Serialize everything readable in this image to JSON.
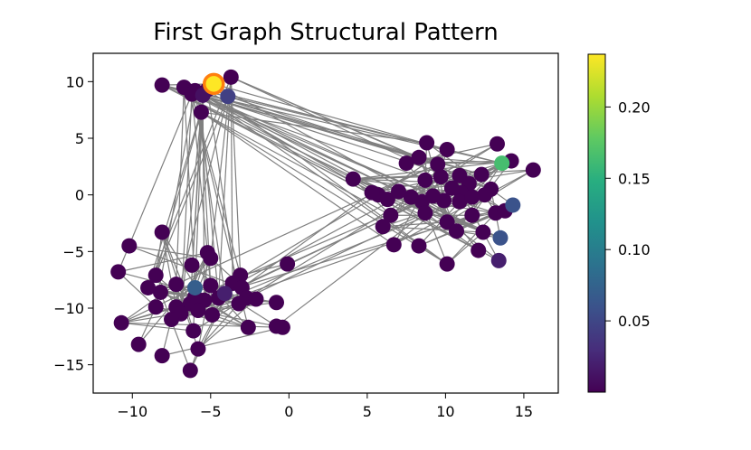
{
  "chart_data": {
    "type": "scatter",
    "title": "First Graph Structural Pattern",
    "xlabel": "",
    "ylabel": "",
    "xlim": [
      -12.5,
      17.2
    ],
    "ylim": [
      -17.5,
      12.5
    ],
    "xticks": [
      -10,
      -5,
      0,
      5,
      10,
      15
    ],
    "yticks": [
      10,
      5,
      0,
      -5,
      -10,
      -15
    ],
    "grid": false,
    "edge_color": "#808080",
    "colorbar": {
      "colormap": "viridis",
      "range": [
        0.0,
        0.237
      ],
      "ticks": [
        0.05,
        0.1,
        0.15,
        0.2
      ],
      "tick_labels": [
        "0.05",
        "0.10",
        "0.15",
        "0.20"
      ]
    },
    "highlight": {
      "x": -4.8,
      "y": 9.8,
      "value": 0.237,
      "ring_color": "#ff7f0e"
    },
    "nodes": [
      {
        "x": -4.8,
        "y": 9.8,
        "v": 0.237
      },
      {
        "x": -8.1,
        "y": 9.7,
        "v": 0.0
      },
      {
        "x": -6.7,
        "y": 9.5,
        "v": 0.0
      },
      {
        "x": -6.0,
        "y": 9.2,
        "v": 0.0
      },
      {
        "x": -3.7,
        "y": 10.4,
        "v": 0.0
      },
      {
        "x": -3.9,
        "y": 8.7,
        "v": 0.045
      },
      {
        "x": -5.5,
        "y": 8.8,
        "v": 0.01
      },
      {
        "x": -5.2,
        "y": 9.3,
        "v": 0.0
      },
      {
        "x": -6.2,
        "y": 8.9,
        "v": 0.0
      },
      {
        "x": -5.6,
        "y": 7.3,
        "v": 0.0
      },
      {
        "x": 13.6,
        "y": 2.8,
        "v": 0.165
      },
      {
        "x": 14.3,
        "y": -0.9,
        "v": 0.06
      },
      {
        "x": 13.5,
        "y": -3.8,
        "v": 0.06
      },
      {
        "x": 13.4,
        "y": -5.8,
        "v": 0.02
      },
      {
        "x": 13.3,
        "y": 4.5,
        "v": 0.0
      },
      {
        "x": 14.2,
        "y": 3.0,
        "v": 0.0
      },
      {
        "x": 15.6,
        "y": 2.2,
        "v": 0.0
      },
      {
        "x": 8.8,
        "y": 4.6,
        "v": 0.0
      },
      {
        "x": 10.1,
        "y": 4.0,
        "v": 0.0
      },
      {
        "x": 7.5,
        "y": 2.8,
        "v": 0.0
      },
      {
        "x": 8.3,
        "y": 3.3,
        "v": 0.0
      },
      {
        "x": 9.5,
        "y": 2.7,
        "v": 0.0
      },
      {
        "x": 8.7,
        "y": 1.3,
        "v": 0.0
      },
      {
        "x": 9.7,
        "y": 1.6,
        "v": 0.0
      },
      {
        "x": 10.9,
        "y": 1.7,
        "v": 0.0
      },
      {
        "x": 11.5,
        "y": 1.0,
        "v": 0.0
      },
      {
        "x": 12.3,
        "y": 1.8,
        "v": 0.0
      },
      {
        "x": 12.9,
        "y": 0.5,
        "v": 0.0
      },
      {
        "x": 12.5,
        "y": 0.0,
        "v": 0.0
      },
      {
        "x": 11.0,
        "y": 0.2,
        "v": 0.0
      },
      {
        "x": 10.4,
        "y": 0.6,
        "v": 0.0
      },
      {
        "x": 9.9,
        "y": -0.5,
        "v": 0.0
      },
      {
        "x": 10.9,
        "y": -0.6,
        "v": 0.0
      },
      {
        "x": 11.7,
        "y": -0.2,
        "v": 0.0
      },
      {
        "x": 9.2,
        "y": -0.1,
        "v": 0.0
      },
      {
        "x": 8.5,
        "y": -0.6,
        "v": 0.0
      },
      {
        "x": 7.8,
        "y": -0.2,
        "v": 0.0
      },
      {
        "x": 7.0,
        "y": 0.3,
        "v": 0.0
      },
      {
        "x": 4.1,
        "y": 1.4,
        "v": 0.0
      },
      {
        "x": 5.7,
        "y": 0.0,
        "v": 0.0
      },
      {
        "x": 6.3,
        "y": -0.4,
        "v": 0.0
      },
      {
        "x": 5.3,
        "y": 0.2,
        "v": 0.0
      },
      {
        "x": 6.5,
        "y": -1.8,
        "v": 0.0
      },
      {
        "x": 6.0,
        "y": -2.8,
        "v": 0.0
      },
      {
        "x": 8.7,
        "y": -1.6,
        "v": 0.0
      },
      {
        "x": 10.1,
        "y": -2.4,
        "v": 0.0
      },
      {
        "x": 11.7,
        "y": -1.8,
        "v": 0.0
      },
      {
        "x": 13.2,
        "y": -1.6,
        "v": 0.0
      },
      {
        "x": 13.8,
        "y": -1.4,
        "v": 0.0
      },
      {
        "x": 10.7,
        "y": -3.2,
        "v": 0.0
      },
      {
        "x": 12.4,
        "y": -3.3,
        "v": 0.0
      },
      {
        "x": 12.1,
        "y": -4.9,
        "v": 0.0
      },
      {
        "x": 6.7,
        "y": -4.4,
        "v": 0.0
      },
      {
        "x": 8.3,
        "y": -4.5,
        "v": 0.0
      },
      {
        "x": 10.1,
        "y": -6.1,
        "v": 0.0
      },
      {
        "x": -10.2,
        "y": -4.5,
        "v": 0.0
      },
      {
        "x": -10.9,
        "y": -6.8,
        "v": 0.0
      },
      {
        "x": -8.1,
        "y": -3.3,
        "v": 0.0
      },
      {
        "x": -6.2,
        "y": -6.2,
        "v": 0.0
      },
      {
        "x": -5.2,
        "y": -5.1,
        "v": 0.0
      },
      {
        "x": -5.0,
        "y": -5.6,
        "v": 0.0
      },
      {
        "x": -3.1,
        "y": -7.1,
        "v": 0.0
      },
      {
        "x": -0.1,
        "y": -6.1,
        "v": 0.0
      },
      {
        "x": -8.5,
        "y": -7.1,
        "v": 0.0
      },
      {
        "x": -9.0,
        "y": -8.2,
        "v": 0.0
      },
      {
        "x": -8.2,
        "y": -8.6,
        "v": 0.0
      },
      {
        "x": -7.2,
        "y": -7.9,
        "v": 0.0
      },
      {
        "x": -6.0,
        "y": -8.2,
        "v": 0.07
      },
      {
        "x": -5.0,
        "y": -8.0,
        "v": 0.0
      },
      {
        "x": -4.1,
        "y": -8.7,
        "v": 0.02
      },
      {
        "x": -3.6,
        "y": -7.8,
        "v": 0.0
      },
      {
        "x": -3.0,
        "y": -8.2,
        "v": 0.0
      },
      {
        "x": -2.7,
        "y": -9.1,
        "v": 0.0
      },
      {
        "x": -2.1,
        "y": -9.2,
        "v": 0.0
      },
      {
        "x": -3.2,
        "y": -9.6,
        "v": 0.0
      },
      {
        "x": -4.5,
        "y": -9.1,
        "v": 0.0
      },
      {
        "x": -5.4,
        "y": -9.3,
        "v": 0.0
      },
      {
        "x": -6.0,
        "y": -9.0,
        "v": 0.0
      },
      {
        "x": -6.3,
        "y": -9.6,
        "v": 0.0
      },
      {
        "x": -7.2,
        "y": -9.9,
        "v": 0.0
      },
      {
        "x": -8.5,
        "y": -9.9,
        "v": 0.0
      },
      {
        "x": -5.8,
        "y": -10.2,
        "v": 0.0
      },
      {
        "x": -4.9,
        "y": -10.6,
        "v": 0.0
      },
      {
        "x": -6.9,
        "y": -10.5,
        "v": 0.0
      },
      {
        "x": -7.5,
        "y": -11.0,
        "v": 0.0
      },
      {
        "x": -10.7,
        "y": -11.3,
        "v": 0.0
      },
      {
        "x": -0.8,
        "y": -9.5,
        "v": 0.0
      },
      {
        "x": -2.6,
        "y": -11.7,
        "v": 0.0
      },
      {
        "x": -0.8,
        "y": -11.6,
        "v": 0.0
      },
      {
        "x": -0.4,
        "y": -11.7,
        "v": 0.0
      },
      {
        "x": -6.1,
        "y": -12.0,
        "v": 0.0
      },
      {
        "x": -9.6,
        "y": -13.2,
        "v": 0.0
      },
      {
        "x": -5.8,
        "y": -13.6,
        "v": 0.0
      },
      {
        "x": -8.1,
        "y": -14.2,
        "v": 0.0
      },
      {
        "x": -6.3,
        "y": -15.5,
        "v": 0.0
      }
    ]
  }
}
